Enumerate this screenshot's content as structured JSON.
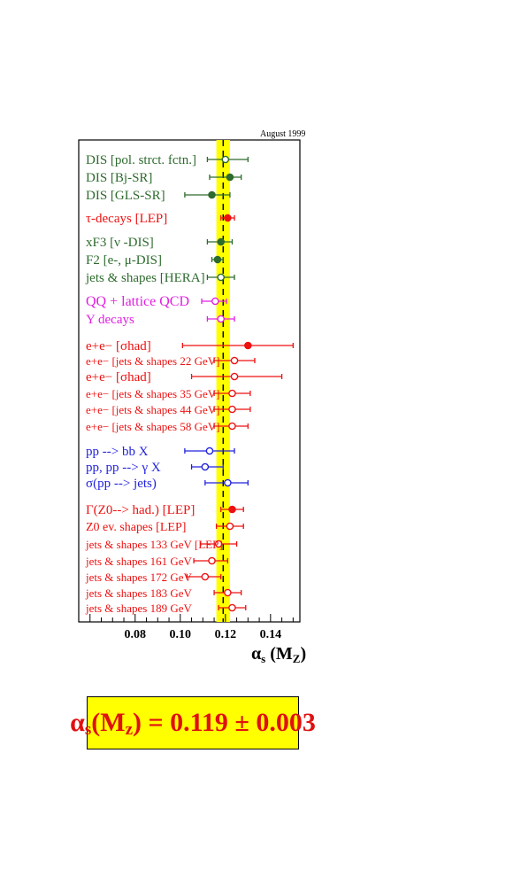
{
  "header": {
    "date": "August 1999"
  },
  "chart_data": {
    "type": "scatter",
    "xlim": [
      0.055,
      0.153
    ],
    "xticks": [
      "0.08",
      "0.10",
      "0.12",
      "0.14"
    ],
    "xlabel": "αs(MZ)",
    "band": {
      "center": 0.119,
      "low": 0.116,
      "high": 0.122,
      "color": "#ffff00"
    },
    "colors": {
      "green": "#2e6b2e",
      "red": "#ee1111",
      "magenta": "#e020e0",
      "blue": "#2222dd"
    },
    "points": [
      {
        "label": "DIS [pol. strct. fctn.]",
        "group": "green",
        "value": 0.12,
        "err_low": 0.008,
        "err_high": 0.01,
        "filled": false
      },
      {
        "label": "DIS [Bj-SR]",
        "group": "green",
        "value": 0.122,
        "err_low": 0.009,
        "err_high": 0.005,
        "filled": true
      },
      {
        "label": "DIS [GLS-SR]",
        "group": "green",
        "value": 0.114,
        "err_low": 0.012,
        "err_high": 0.008,
        "filled": true
      },
      {
        "label": "τ-decays  [LEP]",
        "group": "red",
        "value": 0.121,
        "err_low": 0.003,
        "err_high": 0.003,
        "filled": true
      },
      {
        "label": "xF3  [ν -DIS]",
        "group": "green",
        "value": 0.118,
        "err_low": 0.006,
        "err_high": 0.005,
        "filled": true
      },
      {
        "label": "F2  [e-, μ-DIS]",
        "group": "green",
        "value": 0.1165,
        "err_low": 0.0025,
        "err_high": 0.0025,
        "filled": true
      },
      {
        "label": "jets & shapes [HERA]",
        "group": "green",
        "value": 0.118,
        "err_low": 0.006,
        "err_high": 0.006,
        "filled": false
      },
      {
        "label": "QQ + lattice QCD",
        "group": "magenta",
        "value": 0.1155,
        "err_low": 0.006,
        "err_high": 0.005,
        "filled": false
      },
      {
        "label": "Υ decays",
        "group": "magenta",
        "value": 0.118,
        "err_low": 0.006,
        "err_high": 0.006,
        "filled": false
      },
      {
        "label": "e+e− [σhad]",
        "group": "red",
        "value": 0.13,
        "err_low": 0.029,
        "err_high": 0.02,
        "filled": true
      },
      {
        "label": "e+e− [jets & shapes 22 GeV]",
        "group": "red",
        "value": 0.124,
        "err_low": 0.009,
        "err_high": 0.009,
        "filled": false
      },
      {
        "label": "e+e− [σhad]",
        "group": "red",
        "value": 0.124,
        "err_low": 0.019,
        "err_high": 0.021,
        "filled": false
      },
      {
        "label": "e+e− [jets & shapes 35 GeV]",
        "group": "red",
        "value": 0.123,
        "err_low": 0.008,
        "err_high": 0.008,
        "filled": false
      },
      {
        "label": "e+e− [jets & shapes 44 GeV]",
        "group": "red",
        "value": 0.123,
        "err_low": 0.008,
        "err_high": 0.008,
        "filled": false
      },
      {
        "label": "e+e− [jets & shapes 58 GeV]",
        "group": "red",
        "value": 0.123,
        "err_low": 0.008,
        "err_high": 0.007,
        "filled": false
      },
      {
        "label": "pp --> bb X",
        "group": "blue",
        "value": 0.113,
        "err_low": 0.011,
        "err_high": 0.011,
        "filled": false
      },
      {
        "label": "pp, pp --> γ X",
        "group": "blue",
        "value": 0.111,
        "err_low": 0.006,
        "err_high": 0.008,
        "filled": false
      },
      {
        "label": "σ(pp --> jets)",
        "group": "blue",
        "value": 0.121,
        "err_low": 0.01,
        "err_high": 0.009,
        "filled": false
      },
      {
        "label": "Γ(Z0--> had.) [LEP]",
        "group": "red",
        "value": 0.123,
        "err_low": 0.005,
        "err_high": 0.005,
        "filled": true
      },
      {
        "label": "Z0 ev. shapes  [LEP]",
        "group": "red",
        "value": 0.122,
        "err_low": 0.006,
        "err_high": 0.006,
        "filled": false
      },
      {
        "label": "jets & shapes 133 GeV [LEP]",
        "group": "red",
        "value": 0.117,
        "err_low": 0.008,
        "err_high": 0.008,
        "filled": false
      },
      {
        "label": "jets & shapes 161 GeV",
        "group": "red",
        "value": 0.114,
        "err_low": 0.008,
        "err_high": 0.007,
        "filled": false
      },
      {
        "label": "jets & shapes 172 GeV",
        "group": "red",
        "value": 0.111,
        "err_low": 0.008,
        "err_high": 0.007,
        "filled": false
      },
      {
        "label": "jets & shapes 183 GeV",
        "group": "red",
        "value": 0.121,
        "err_low": 0.006,
        "err_high": 0.006,
        "filled": false
      },
      {
        "label": "jets & shapes 189 GeV",
        "group": "red",
        "value": 0.123,
        "err_low": 0.006,
        "err_high": 0.006,
        "filled": false
      }
    ]
  },
  "result": {
    "symbol": "α",
    "sub": "s",
    "rest": "(M",
    "sub2": "z",
    "tail": ") = 0.119 ± 0.003"
  }
}
